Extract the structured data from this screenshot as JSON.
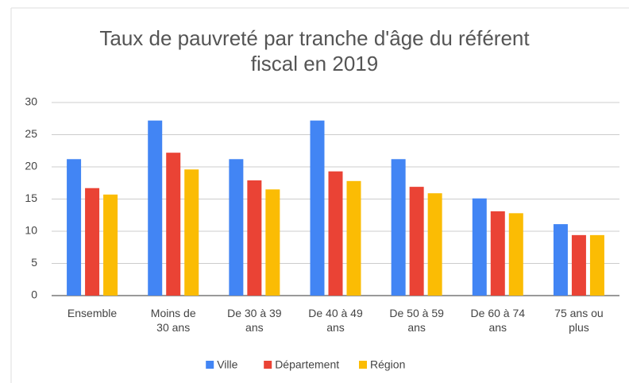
{
  "chart_data": {
    "type": "bar",
    "title": "Taux de pauvreté par tranche d'âge du référent fiscal en 2019",
    "categories": [
      "Ensemble",
      "Moins de 30 ans",
      "De 30 à 39 ans",
      "De 40 à 49 ans",
      "De 50 à 59 ans",
      "De 60 à 74 ans",
      "75 ans ou plus"
    ],
    "series": [
      {
        "name": "Ville",
        "color": "#4285f4",
        "values": [
          21.2,
          27.2,
          21.2,
          27.2,
          21.2,
          15.1,
          11.1
        ]
      },
      {
        "name": "Département",
        "color": "#ea4335",
        "values": [
          16.7,
          22.2,
          17.9,
          19.3,
          16.9,
          13.1,
          9.4
        ]
      },
      {
        "name": "Région",
        "color": "#fbbc04",
        "values": [
          15.7,
          19.6,
          16.5,
          17.8,
          15.9,
          12.8,
          9.4
        ]
      }
    ],
    "ylim": [
      0,
      30
    ],
    "yticks": [
      0,
      5,
      10,
      15,
      20,
      25,
      30
    ],
    "grid": true,
    "legend": "bottom"
  }
}
